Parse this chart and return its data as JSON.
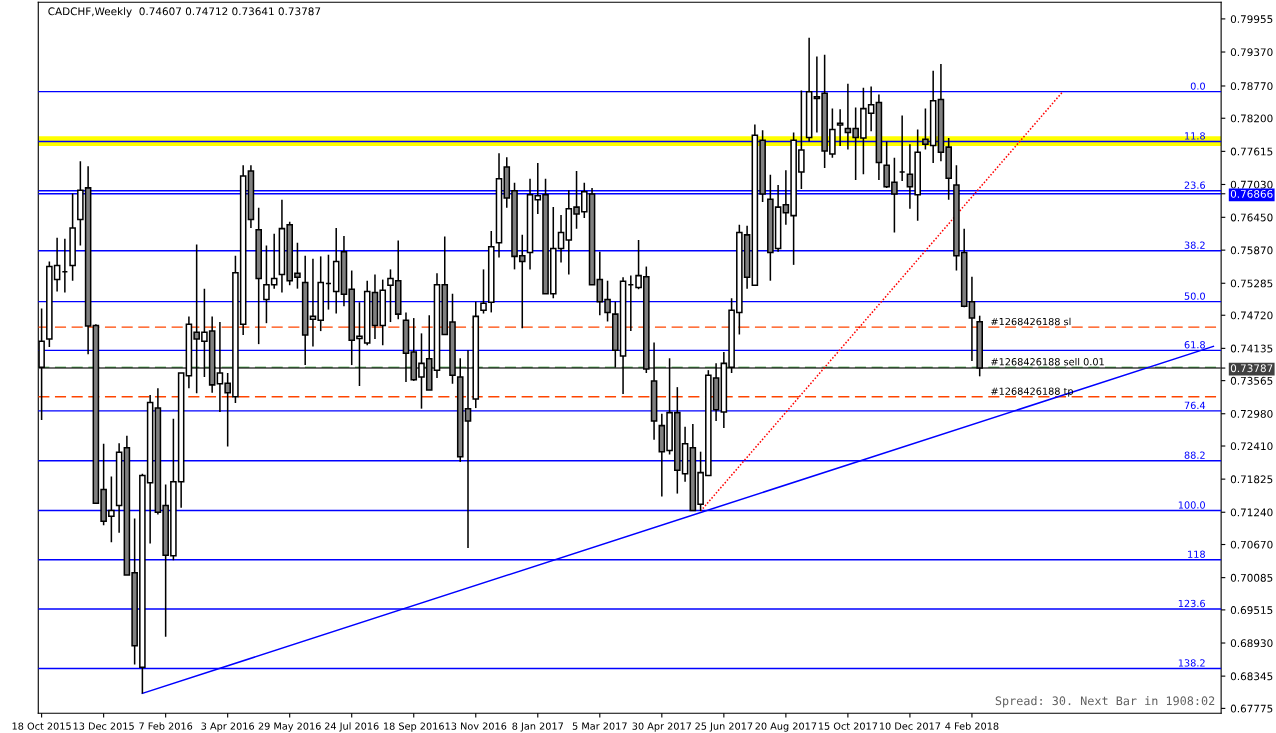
{
  "chart_data": {
    "type": "candlestick",
    "title": "CADCHF,Weekly  0.74607 0.74712 0.73641 0.73787",
    "annotations": [
      "Spread: 30. Next Bar in 1908:02",
      {
        "text": "0.0",
        "x": "2018-09-03",
        "y": 0.7867
      },
      {
        "text": "11.8",
        "x": "2018-09-03",
        "y": 0.7779
      },
      {
        "text": "23.6",
        "x": "2018-09-03",
        "y": 0.7692
      },
      {
        "text": "38.2",
        "x": "2018-09-03",
        "y": 0.7586
      },
      {
        "text": "50.0",
        "x": "2018-09-03",
        "y": 0.7496
      },
      {
        "text": "61.8",
        "x": "2018-09-03",
        "y": 0.741
      },
      {
        "text": "76.4",
        "x": "2018-09-03",
        "y": 0.7303
      },
      {
        "text": "88.2",
        "x": "2018-09-03",
        "y": 0.7215
      },
      {
        "text": "100.0",
        "x": "2018-09-03",
        "y": 0.7127
      },
      {
        "text": "118",
        "x": "2018-09-03",
        "y": 0.704
      },
      {
        "text": "123.6",
        "x": "2018-09-03",
        "y": 0.6953
      },
      {
        "text": "138.2",
        "x": "2018-09-03",
        "y": 0.6848
      }
    ],
    "x": [
      "2015-10-18",
      "2015-10-25",
      "2015-11-01",
      "2015-11-08",
      "2015-11-15",
      "2015-11-22",
      "2015-11-29",
      "2015-12-06",
      "2015-12-13",
      "2015-12-20",
      "2015-12-27",
      "2016-01-03",
      "2016-01-10",
      "2016-01-17",
      "2016-01-24",
      "2016-01-31",
      "2016-02-07",
      "2016-02-14",
      "2016-02-21",
      "2016-02-28",
      "2016-03-06",
      "2016-03-13",
      "2016-03-20",
      "2016-03-27",
      "2016-04-03",
      "2016-04-10",
      "2016-04-17",
      "2016-04-24",
      "2016-05-01",
      "2016-05-08",
      "2016-05-15",
      "2016-05-22",
      "2016-05-29",
      "2016-06-05",
      "2016-06-12",
      "2016-06-19",
      "2016-06-26",
      "2016-07-03",
      "2016-07-10",
      "2016-07-17",
      "2016-07-24",
      "2016-07-31",
      "2016-08-07",
      "2016-08-14",
      "2016-08-21",
      "2016-08-28",
      "2016-09-04",
      "2016-09-11",
      "2016-09-18",
      "2016-09-25",
      "2016-10-02",
      "2016-10-09",
      "2016-10-16",
      "2016-10-23",
      "2016-10-30",
      "2016-11-06",
      "2016-11-13",
      "2016-11-20",
      "2016-11-27",
      "2016-12-04",
      "2016-12-11",
      "2016-12-18",
      "2016-12-25",
      "2017-01-01",
      "2017-01-08",
      "2017-01-15",
      "2017-01-22",
      "2017-01-29",
      "2017-02-05",
      "2017-02-12",
      "2017-02-19",
      "2017-02-26",
      "2017-03-05",
      "2017-03-12",
      "2017-03-19",
      "2017-03-26",
      "2017-04-02",
      "2017-04-09",
      "2017-04-16",
      "2017-04-23",
      "2017-04-30",
      "2017-05-07",
      "2017-05-14",
      "2017-05-21",
      "2017-05-28",
      "2017-06-04",
      "2017-06-11",
      "2017-06-18",
      "2017-06-25",
      "2017-07-02",
      "2017-07-09",
      "2017-07-16",
      "2017-07-23",
      "2017-07-30",
      "2017-08-06",
      "2017-08-13",
      "2017-08-20",
      "2017-08-27",
      "2017-09-03",
      "2017-09-10",
      "2017-09-17",
      "2017-09-24",
      "2017-10-01",
      "2017-10-08",
      "2017-10-15",
      "2017-10-22",
      "2017-10-29",
      "2017-11-05",
      "2017-11-12",
      "2017-11-19",
      "2017-11-26",
      "2017-12-03",
      "2017-12-10",
      "2017-12-17",
      "2017-12-24",
      "2017-12-31",
      "2018-01-07",
      "2018-01-14",
      "2018-01-21",
      "2018-01-28",
      "2018-02-04",
      "2018-02-11"
    ],
    "ohlc": [
      [
        0.738,
        0.7484,
        0.7287,
        0.7426
      ],
      [
        0.743,
        0.7567,
        0.7416,
        0.7558
      ],
      [
        0.7535,
        0.7609,
        0.7514,
        0.756
      ],
      [
        0.7549,
        0.7607,
        0.7512,
        0.7549
      ],
      [
        0.756,
        0.7687,
        0.7533,
        0.7626
      ],
      [
        0.7641,
        0.7744,
        0.7595,
        0.7693
      ],
      [
        0.7697,
        0.7735,
        0.7403,
        0.7453
      ],
      [
        0.7454,
        0.7456,
        0.714,
        0.714
      ],
      [
        0.7164,
        0.7245,
        0.7101,
        0.7108
      ],
      [
        0.7117,
        0.7187,
        0.7071,
        0.7127
      ],
      [
        0.7136,
        0.7246,
        0.7088,
        0.723
      ],
      [
        0.7238,
        0.7259,
        0.7013,
        0.7013
      ],
      [
        0.7017,
        0.7113,
        0.6855,
        0.6888
      ],
      [
        0.685,
        0.7192,
        0.6804,
        0.7189
      ],
      [
        0.7176,
        0.7331,
        0.7069,
        0.7318
      ],
      [
        0.7308,
        0.7343,
        0.712,
        0.7124
      ],
      [
        0.7136,
        0.7173,
        0.6904,
        0.7048
      ],
      [
        0.7047,
        0.7289,
        0.7039,
        0.7178
      ],
      [
        0.7178,
        0.737,
        0.7132,
        0.737
      ],
      [
        0.7365,
        0.747,
        0.7343,
        0.7456
      ],
      [
        0.7442,
        0.7597,
        0.7334,
        0.743
      ],
      [
        0.7426,
        0.7519,
        0.7363,
        0.7442
      ],
      [
        0.7444,
        0.747,
        0.7335,
        0.7349
      ],
      [
        0.7351,
        0.746,
        0.7301,
        0.737
      ],
      [
        0.7352,
        0.737,
        0.724,
        0.7335
      ],
      [
        0.7328,
        0.7577,
        0.7317,
        0.7547
      ],
      [
        0.7456,
        0.7737,
        0.7437,
        0.7718
      ],
      [
        0.7727,
        0.7737,
        0.7626,
        0.7641
      ],
      [
        0.7623,
        0.7662,
        0.7421,
        0.7537
      ],
      [
        0.75,
        0.7595,
        0.7458,
        0.7526
      ],
      [
        0.7526,
        0.7616,
        0.7519,
        0.7537
      ],
      [
        0.7544,
        0.7676,
        0.7512,
        0.7625
      ],
      [
        0.7632,
        0.7637,
        0.7525,
        0.7533
      ],
      [
        0.7546,
        0.76,
        0.7519,
        0.7539
      ],
      [
        0.753,
        0.7577,
        0.7384,
        0.7437
      ],
      [
        0.7465,
        0.7572,
        0.7417,
        0.747
      ],
      [
        0.7463,
        0.7576,
        0.7444,
        0.753
      ],
      [
        0.7528,
        0.7579,
        0.7482,
        0.7528
      ],
      [
        0.7514,
        0.7626,
        0.7475,
        0.7567
      ],
      [
        0.7584,
        0.7612,
        0.7488,
        0.7509
      ],
      [
        0.7518,
        0.7551,
        0.7384,
        0.7428
      ],
      [
        0.7431,
        0.7495,
        0.7347,
        0.7435
      ],
      [
        0.7423,
        0.7533,
        0.7419,
        0.7514
      ],
      [
        0.7512,
        0.7544,
        0.743,
        0.7454
      ],
      [
        0.7454,
        0.7535,
        0.7419,
        0.7516
      ],
      [
        0.7525,
        0.7553,
        0.746,
        0.7537
      ],
      [
        0.7533,
        0.7604,
        0.7465,
        0.7474
      ],
      [
        0.7463,
        0.7477,
        0.7354,
        0.7405
      ],
      [
        0.7407,
        0.7467,
        0.7356,
        0.7358
      ],
      [
        0.7363,
        0.744,
        0.7307,
        0.7387
      ],
      [
        0.7395,
        0.7472,
        0.734,
        0.734
      ],
      [
        0.7375,
        0.7546,
        0.7361,
        0.7526
      ],
      [
        0.7526,
        0.7611,
        0.7438,
        0.7438
      ],
      [
        0.746,
        0.751,
        0.7351,
        0.7366
      ],
      [
        0.7363,
        0.7396,
        0.7213,
        0.7222
      ],
      [
        0.7307,
        0.741,
        0.7061,
        0.7285
      ],
      [
        0.7324,
        0.7496,
        0.7308,
        0.747
      ],
      [
        0.7481,
        0.7553,
        0.7475,
        0.7493
      ],
      [
        0.7495,
        0.7621,
        0.7477,
        0.7593
      ],
      [
        0.76,
        0.7758,
        0.7574,
        0.7713
      ],
      [
        0.7734,
        0.7751,
        0.7662,
        0.7679
      ],
      [
        0.7692,
        0.7706,
        0.7553,
        0.7576
      ],
      [
        0.7577,
        0.7614,
        0.7449,
        0.7567
      ],
      [
        0.7583,
        0.7713,
        0.7553,
        0.7685
      ],
      [
        0.7676,
        0.7741,
        0.7651,
        0.7683
      ],
      [
        0.7685,
        0.7713,
        0.751,
        0.751
      ],
      [
        0.751,
        0.7663,
        0.7502,
        0.759
      ],
      [
        0.759,
        0.7649,
        0.7565,
        0.7618
      ],
      [
        0.7605,
        0.7693,
        0.7544,
        0.766
      ],
      [
        0.7663,
        0.7727,
        0.7625,
        0.7651
      ],
      [
        0.7655,
        0.7706,
        0.7644,
        0.769
      ],
      [
        0.7686,
        0.7697,
        0.7526,
        0.7526
      ],
      [
        0.7535,
        0.7584,
        0.7472,
        0.7496
      ],
      [
        0.75,
        0.7533,
        0.7461,
        0.7477
      ],
      [
        0.7474,
        0.7496,
        0.738,
        0.741
      ],
      [
        0.74,
        0.7539,
        0.7333,
        0.7532
      ],
      [
        0.7526,
        0.7542,
        0.7444,
        0.7526
      ],
      [
        0.7521,
        0.7605,
        0.7518,
        0.7542
      ],
      [
        0.754,
        0.7558,
        0.737,
        0.7377
      ],
      [
        0.7356,
        0.7424,
        0.7252,
        0.7285
      ],
      [
        0.7277,
        0.7298,
        0.7152,
        0.7231
      ],
      [
        0.7233,
        0.7396,
        0.7226,
        0.73
      ],
      [
        0.73,
        0.7345,
        0.7157,
        0.7198
      ],
      [
        0.7192,
        0.7275,
        0.7178,
        0.7245
      ],
      [
        0.7238,
        0.728,
        0.7126,
        0.7127
      ],
      [
        0.7138,
        0.7231,
        0.7126,
        0.7194
      ],
      [
        0.7189,
        0.7375,
        0.7189,
        0.7366
      ],
      [
        0.7361,
        0.7387,
        0.7285,
        0.7305
      ],
      [
        0.7301,
        0.7407,
        0.7273,
        0.7387
      ],
      [
        0.738,
        0.7502,
        0.737,
        0.7481
      ],
      [
        0.7477,
        0.7632,
        0.7438,
        0.7618
      ],
      [
        0.7614,
        0.763,
        0.7519,
        0.7539
      ],
      [
        0.7525,
        0.7809,
        0.7525,
        0.779
      ],
      [
        0.7781,
        0.7799,
        0.7672,
        0.7686
      ],
      [
        0.7677,
        0.772,
        0.7533,
        0.7583
      ],
      [
        0.759,
        0.7702,
        0.7584,
        0.7663
      ],
      [
        0.7667,
        0.7728,
        0.7632,
        0.7653
      ],
      [
        0.7648,
        0.7795,
        0.7561,
        0.7781
      ],
      [
        0.7725,
        0.7869,
        0.7695,
        0.7764
      ],
      [
        0.7786,
        0.7962,
        0.7779,
        0.7867
      ],
      [
        0.7858,
        0.7929,
        0.7795,
        0.7855
      ],
      [
        0.7864,
        0.7932,
        0.7732,
        0.7762
      ],
      [
        0.7757,
        0.7837,
        0.775,
        0.78
      ],
      [
        0.7808,
        0.7836,
        0.7771,
        0.7811
      ],
      [
        0.7802,
        0.7881,
        0.7765,
        0.7795
      ],
      [
        0.7802,
        0.7839,
        0.7711,
        0.7786
      ],
      [
        0.7785,
        0.7874,
        0.7721,
        0.7837
      ],
      [
        0.7829,
        0.7876,
        0.7797,
        0.7844
      ],
      [
        0.7848,
        0.7862,
        0.7711,
        0.7742
      ],
      [
        0.7737,
        0.7779,
        0.7697,
        0.7699
      ],
      [
        0.7707,
        0.775,
        0.7618,
        0.7686
      ],
      [
        0.7725,
        0.7825,
        0.7709,
        0.7725
      ],
      [
        0.7721,
        0.7774,
        0.766,
        0.7699
      ],
      [
        0.7685,
        0.78,
        0.7639,
        0.776
      ],
      [
        0.7783,
        0.7837,
        0.7765,
        0.7774
      ],
      [
        0.7772,
        0.7904,
        0.7741,
        0.7851
      ],
      [
        0.7853,
        0.7916,
        0.7744,
        0.776
      ],
      [
        0.7769,
        0.7785,
        0.7676,
        0.7714
      ],
      [
        0.7702,
        0.7737,
        0.7551,
        0.7577
      ],
      [
        0.7583,
        0.7625,
        0.7486,
        0.7488
      ],
      [
        0.7496,
        0.754,
        0.7391,
        0.7467
      ],
      [
        0.74607,
        0.74712,
        0.73641,
        0.73787
      ]
    ],
    "series": [
      {
        "type": "line",
        "x": [
          "2016-01-17",
          "2018-09-10"
        ],
        "values": [
          0.6804,
          0.7417
        ],
        "color": "#0000ff",
        "line_style": "solid"
      },
      {
        "type": "line",
        "x": [
          "2017-06-04",
          "2018-04-27"
        ],
        "values": [
          0.7126,
          0.7867
        ],
        "color": "#ff0000",
        "line_style": "dotted"
      }
    ],
    "xlim": [
      "2015-10-15",
      "2018-09-17"
    ],
    "xticks": [
      {
        "value": "2015-10-18",
        "label": "18 Oct 2015"
      },
      {
        "value": "2015-12-13",
        "label": "13 Dec 2015"
      },
      {
        "value": "2016-02-07",
        "label": "7 Feb 2016"
      },
      {
        "value": "2016-04-03",
        "label": "3 Apr 2016"
      },
      {
        "value": "2016-05-29",
        "label": "29 May 2016"
      },
      {
        "value": "2016-07-24",
        "label": "24 Jul 2016"
      },
      {
        "value": "2016-09-18",
        "label": "18 Sep 2016"
      },
      {
        "value": "2016-11-13",
        "label": "13 Nov 2016"
      },
      {
        "value": "2017-01-08",
        "label": "8 Jan 2017"
      },
      {
        "value": "2017-03-05",
        "label": "5 Mar 2017"
      },
      {
        "value": "2017-04-30",
        "label": "30 Apr 2017"
      },
      {
        "value": "2017-06-25",
        "label": "25 Jun 2017"
      },
      {
        "value": "2017-08-20",
        "label": "20 Aug 2017"
      },
      {
        "value": "2017-10-15",
        "label": "15 Oct 2017"
      },
      {
        "value": "2017-12-10",
        "label": "10 Dec 2017"
      },
      {
        "value": "2018-02-04",
        "label": "4 Feb 2018"
      }
    ],
    "ylim": [
      0.6769,
      0.8025
    ],
    "yticks": [
      {
        "value": 0.79955,
        "label": "0.79955"
      },
      {
        "value": 0.7937,
        "label": "0.79370"
      },
      {
        "value": 0.7877,
        "label": "0.78770"
      },
      {
        "value": 0.782,
        "label": "0.78200"
      },
      {
        "value": 0.77615,
        "label": "0.77615"
      },
      {
        "value": 0.7703,
        "label": "0.77030"
      },
      {
        "value": 0.7645,
        "label": "0.76450"
      },
      {
        "value": 0.7587,
        "label": "0.75870"
      },
      {
        "value": 0.75285,
        "label": "0.75285"
      },
      {
        "value": 0.7472,
        "label": "0.74720"
      },
      {
        "value": 0.74135,
        "label": "0.74135"
      },
      {
        "value": 0.73565,
        "label": "0.73565"
      },
      {
        "value": 0.7298,
        "label": "0.72980"
      },
      {
        "value": 0.7241,
        "label": "0.72410"
      },
      {
        "value": 0.71825,
        "label": "0.71825"
      },
      {
        "value": 0.7124,
        "label": "0.71240"
      },
      {
        "value": 0.7067,
        "label": "0.70670"
      },
      {
        "value": 0.70085,
        "label": "0.70085"
      },
      {
        "value": 0.69515,
        "label": "0.69515"
      },
      {
        "value": 0.6893,
        "label": "0.68930"
      },
      {
        "value": 0.68345,
        "label": "0.68345"
      },
      {
        "value": 0.67775,
        "label": "0.67775"
      },
      {
        "value": 0.76866,
        "label": "0.76866"
      },
      {
        "value": 0.73787,
        "label": "0.73787"
      }
    ],
    "ref_lines": [
      {
        "axis": "y",
        "value": 0.7867,
        "color": "#0000ff",
        "line_style": "solid"
      },
      {
        "axis": "y",
        "value": 0.7779,
        "color": "#0000ff",
        "line_style": "solid"
      },
      {
        "axis": "y",
        "value": 0.7692,
        "color": "#0000ff",
        "line_style": "solid"
      },
      {
        "axis": "y",
        "value": 0.7586,
        "color": "#0000ff",
        "line_style": "solid"
      },
      {
        "axis": "y",
        "value": 0.7496,
        "color": "#0000ff",
        "line_style": "solid"
      },
      {
        "axis": "y",
        "value": 0.741,
        "color": "#0000ff",
        "line_style": "solid"
      },
      {
        "axis": "y",
        "value": 0.7303,
        "color": "#0000ff",
        "line_style": "solid"
      },
      {
        "axis": "y",
        "value": 0.7215,
        "color": "#0000ff",
        "line_style": "solid"
      },
      {
        "axis": "y",
        "value": 0.7127,
        "color": "#0000ff",
        "line_style": "solid"
      },
      {
        "axis": "y",
        "value": 0.704,
        "color": "#0000ff",
        "line_style": "solid"
      },
      {
        "axis": "y",
        "value": 0.6953,
        "color": "#0000ff",
        "line_style": "solid"
      },
      {
        "axis": "y",
        "value": 0.6848,
        "color": "#0000ff",
        "line_style": "solid"
      },
      {
        "axis": "y",
        "value": 0.7451,
        "label": "#1268426188 sl",
        "color": "#ff4500",
        "line_style": "dashed"
      },
      {
        "axis": "y",
        "value": 0.738,
        "label": "#1268426188 sell 0.01",
        "color": "#008000",
        "line_style": "dashed"
      },
      {
        "axis": "y",
        "value": 0.7328,
        "label": "#1268426188 tp",
        "color": "#ff4500",
        "line_style": "dashed"
      },
      {
        "axis": "y",
        "value": 0.76866,
        "color": "#0000ff",
        "line_style": "solid"
      },
      {
        "axis": "y",
        "value": 0.73787,
        "color": "#404040",
        "line_style": "solid"
      }
    ],
    "bands": [
      {
        "axis": "y",
        "from": 0.7771,
        "to": 0.7788,
        "color": "#ffff00"
      }
    ],
    "grid": false,
    "legend": false
  }
}
